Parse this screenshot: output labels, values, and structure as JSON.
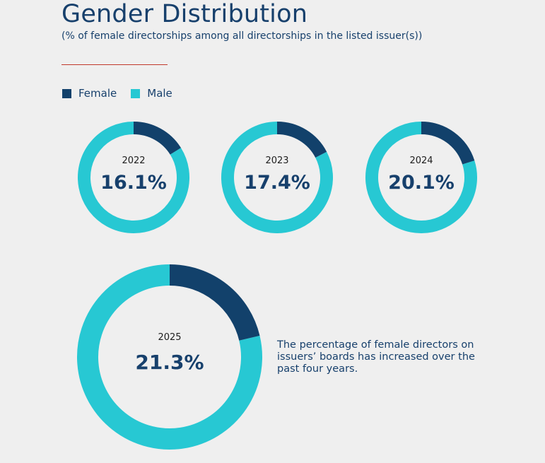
{
  "title": "Gender Distribution",
  "subtitle": "(% of female directorships among all directorships in the listed issuer(s))",
  "legend": {
    "female_label": "Female",
    "male_label": "Male"
  },
  "colors": {
    "female": "#12416b",
    "male": "#27c8d3",
    "accent_rule": "#c0392b",
    "text": "#17406c"
  },
  "chart_data": {
    "type": "pie",
    "variant": "donut",
    "title": "Gender Distribution",
    "subtitle": "(% of female directorships among all directorships in the listed issuer(s))",
    "legend": [
      "Female",
      "Male"
    ],
    "legend_position": "top-left",
    "series": [
      {
        "year": "2022",
        "label": "16.1%",
        "female": 16.1,
        "male": 83.9
      },
      {
        "year": "2023",
        "label": "17.4%",
        "female": 17.4,
        "male": 82.6
      },
      {
        "year": "2024",
        "label": "20.1%",
        "female": 20.1,
        "male": 79.9
      },
      {
        "year": "2025",
        "label": "21.3%",
        "female": 21.3,
        "male": 78.7
      }
    ]
  },
  "note": "The percentage of female directors on issuers’ boards has increased over the past four years."
}
